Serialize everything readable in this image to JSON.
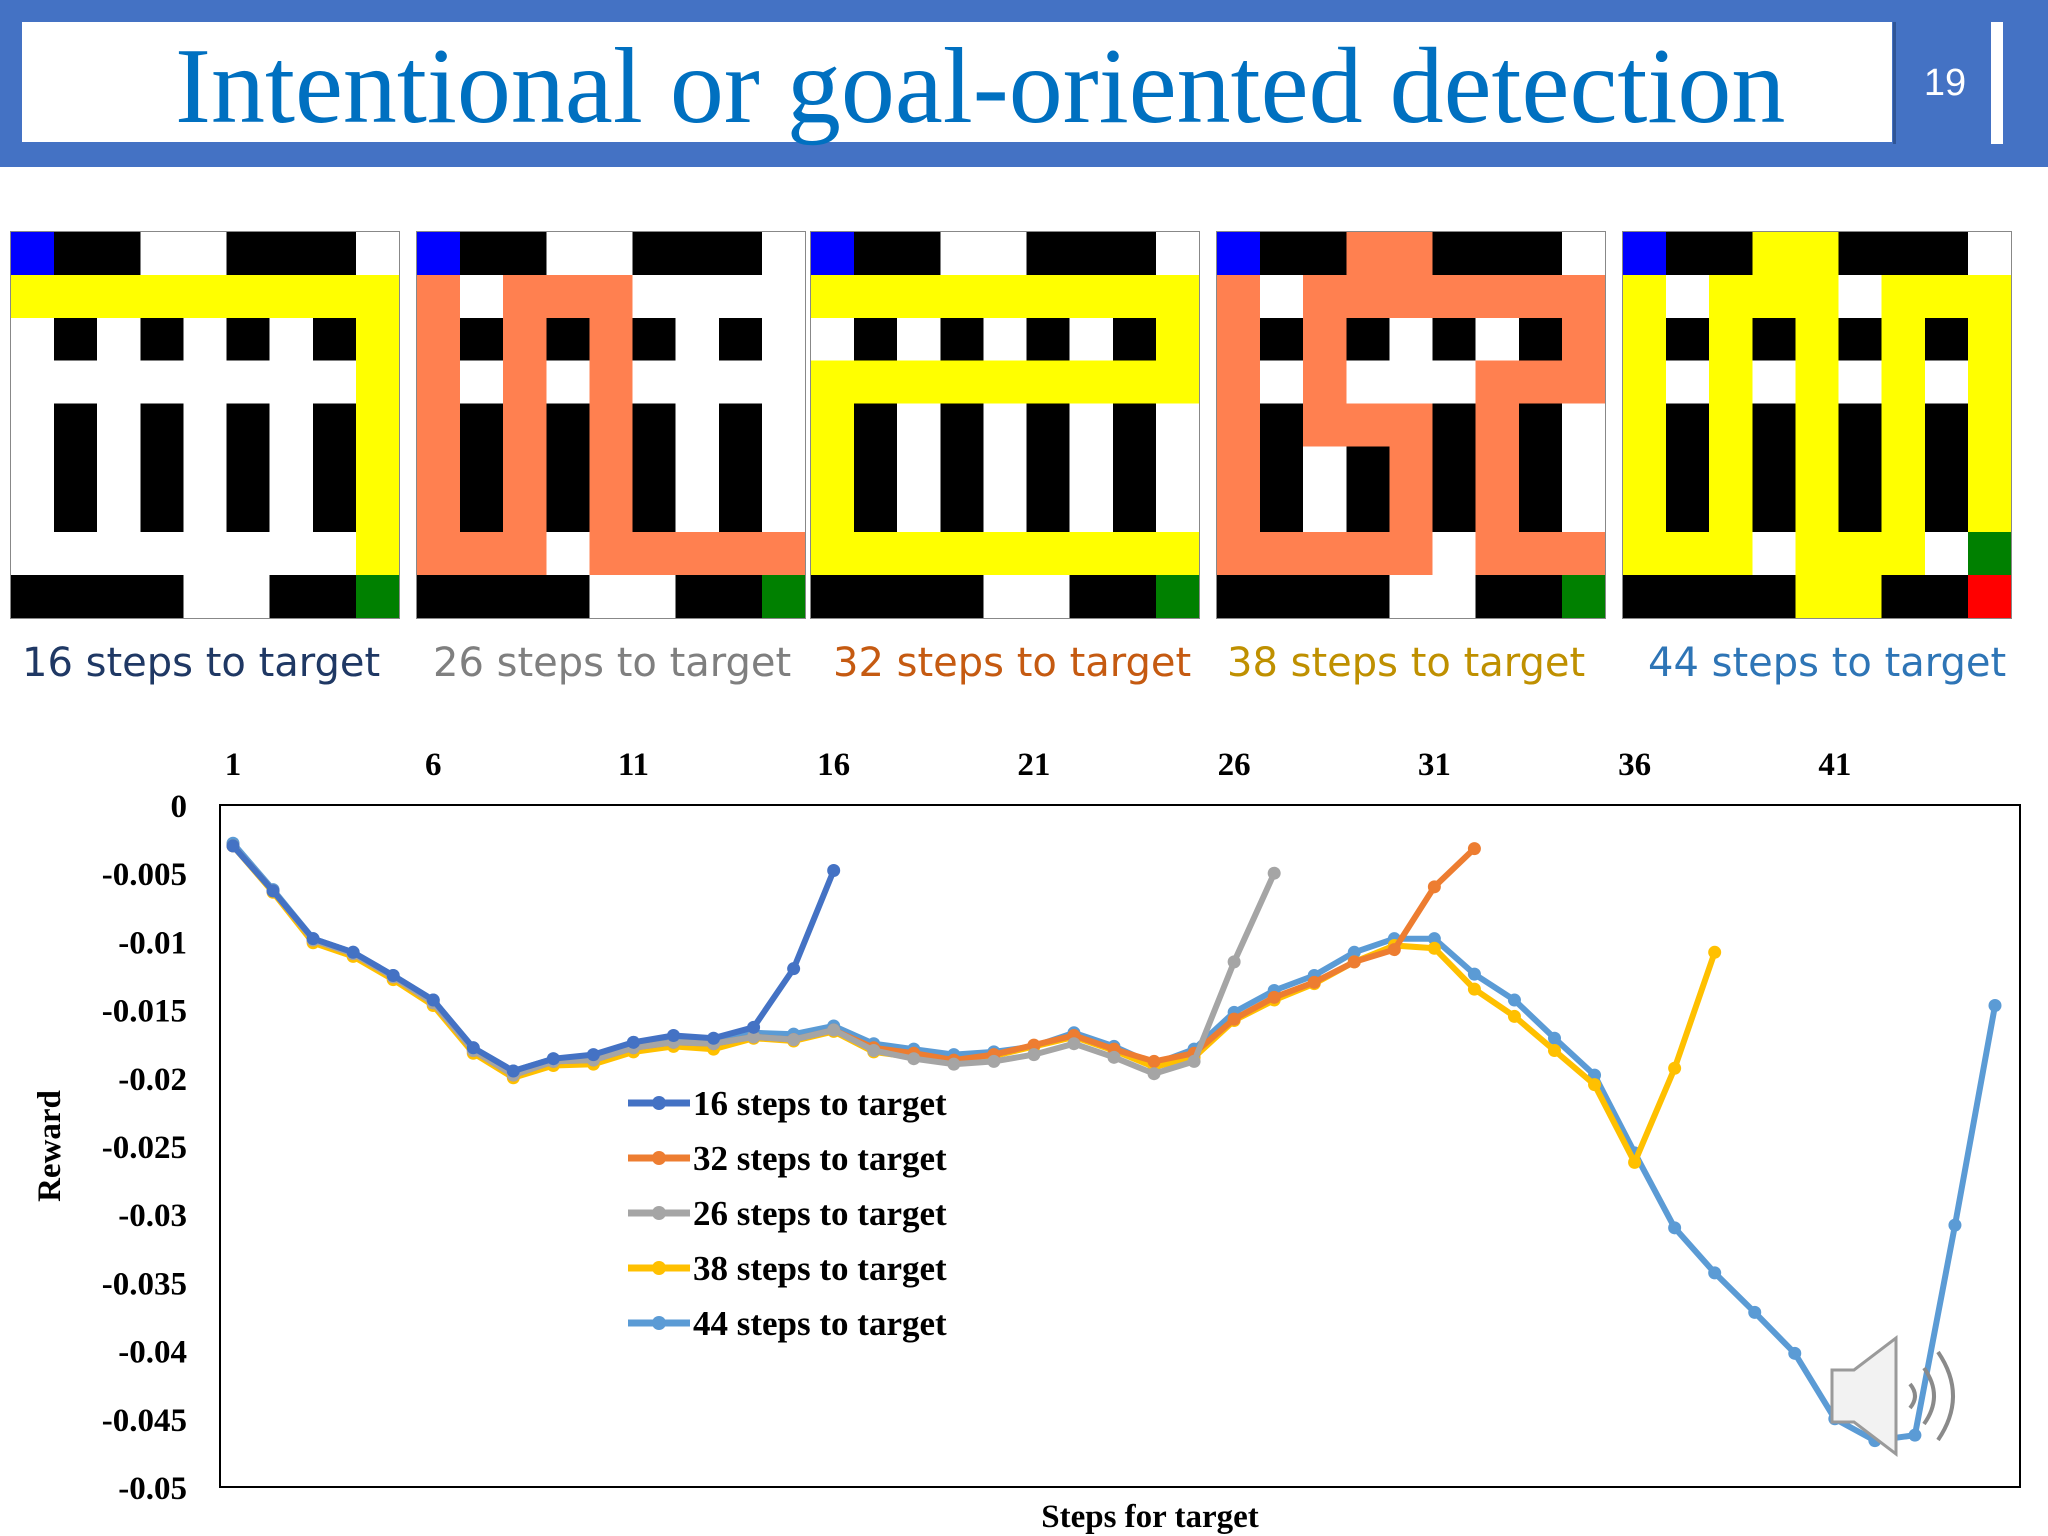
{
  "slide": {
    "title": "Intentional or goal-oriented detection",
    "number": "19",
    "colors": {
      "frame": "#4472c4",
      "title": "#0070c0"
    }
  },
  "mazes": [
    {
      "caption": "16 steps to target",
      "caption_color": "#1f3864",
      "path_color": "#ffff00"
    },
    {
      "caption": "26 steps to target",
      "caption_color": "#7f7f7f",
      "path_color": "#ff8050"
    },
    {
      "caption": "32 steps to target",
      "caption_color": "#c55a11",
      "path_color": "#ffff00"
    },
    {
      "caption": "38 steps to target",
      "caption_color": "#bf9000",
      "path_color": "#ff8050"
    },
    {
      "caption": "44 steps to target",
      "caption_color": "#2e75b6",
      "path_color": "#ffff00"
    }
  ],
  "icons": {
    "sound": "speaker-icon"
  },
  "chart_data": {
    "type": "line",
    "title": "",
    "xlabel": "Steps  for target",
    "ylabel": "Reward",
    "x_ticks": [
      1,
      6,
      11,
      16,
      21,
      26,
      31,
      36,
      41
    ],
    "x_tick_labels": [
      "1",
      "6",
      "11",
      "16",
      "21",
      "26",
      "31",
      "36",
      "41"
    ],
    "xlim": [
      1,
      45
    ],
    "y_ticks": [
      0,
      -0.005,
      -0.01,
      -0.015,
      -0.02,
      -0.025,
      -0.03,
      -0.035,
      -0.04,
      -0.045,
      -0.05
    ],
    "y_tick_labels": [
      "0",
      "-0.005",
      "-0.01",
      "-0.015",
      "-0.02",
      "-0.025",
      "-0.03",
      "-0.035",
      "-0.04",
      "-0.045",
      "-0.05"
    ],
    "ylim": [
      -0.05,
      0
    ],
    "legend_position": "center",
    "series": [
      {
        "name": "16 steps to target",
        "color": "#4472c4",
        "values": [
          -0.003,
          -0.0063,
          -0.0098,
          -0.0108,
          -0.0125,
          -0.0143,
          -0.0178,
          -0.0195,
          -0.0186,
          -0.0183,
          -0.0174,
          -0.0169,
          -0.0171,
          -0.0163,
          -0.012,
          -0.0048
        ]
      },
      {
        "name": "32 steps to target",
        "color": "#ed7d31",
        "values": [
          -0.003,
          -0.0063,
          -0.0099,
          -0.0109,
          -0.0126,
          -0.0145,
          -0.018,
          -0.0198,
          -0.0188,
          -0.0187,
          -0.0178,
          -0.0174,
          -0.0175,
          -0.017,
          -0.0172,
          -0.0165,
          -0.0178,
          -0.0182,
          -0.0187,
          -0.0183,
          -0.0176,
          -0.0169,
          -0.0179,
          -0.0188,
          -0.0182,
          -0.0157,
          -0.0141,
          -0.013,
          -0.0115,
          -0.0106,
          -0.006,
          -0.0032
        ]
      },
      {
        "name": "26 steps to target",
        "color": "#a5a5a5",
        "values": [
          -0.003,
          -0.0063,
          -0.0099,
          -0.0109,
          -0.0126,
          -0.0145,
          -0.018,
          -0.0198,
          -0.0188,
          -0.0187,
          -0.0178,
          -0.0174,
          -0.0175,
          -0.017,
          -0.0172,
          -0.0165,
          -0.018,
          -0.0186,
          -0.019,
          -0.0188,
          -0.0183,
          -0.0175,
          -0.0185,
          -0.0197,
          -0.0188,
          -0.0115,
          -0.005
        ]
      },
      {
        "name": "38 steps to target",
        "color": "#ffc000",
        "values": [
          -0.003,
          -0.0064,
          -0.0101,
          -0.0111,
          -0.0128,
          -0.0147,
          -0.0182,
          -0.02,
          -0.0191,
          -0.019,
          -0.0181,
          -0.0177,
          -0.0179,
          -0.0171,
          -0.0173,
          -0.0166,
          -0.0181,
          -0.0185,
          -0.0188,
          -0.0184,
          -0.0177,
          -0.017,
          -0.018,
          -0.0192,
          -0.0185,
          -0.0158,
          -0.0143,
          -0.0131,
          -0.0115,
          -0.0103,
          -0.0105,
          -0.0135,
          -0.0155,
          -0.018,
          -0.0205,
          -0.0262,
          -0.0193,
          -0.0108
        ]
      },
      {
        "name": "44 steps to target",
        "color": "#5b9bd5",
        "values": [
          -0.0028,
          -0.0062,
          -0.0098,
          -0.0108,
          -0.0125,
          -0.0143,
          -0.0178,
          -0.0195,
          -0.0186,
          -0.0184,
          -0.0174,
          -0.017,
          -0.0172,
          -0.0167,
          -0.0168,
          -0.0162,
          -0.0175,
          -0.0179,
          -0.0183,
          -0.0181,
          -0.0177,
          -0.0167,
          -0.0177,
          -0.019,
          -0.0179,
          -0.0152,
          -0.0136,
          -0.0125,
          -0.0108,
          -0.0098,
          -0.0098,
          -0.0124,
          -0.0143,
          -0.0171,
          -0.0198,
          -0.0255,
          -0.031,
          -0.0343,
          -0.0372,
          -0.0402,
          -0.045,
          -0.0466,
          -0.0462,
          -0.0308,
          -0.0147
        ]
      }
    ]
  }
}
